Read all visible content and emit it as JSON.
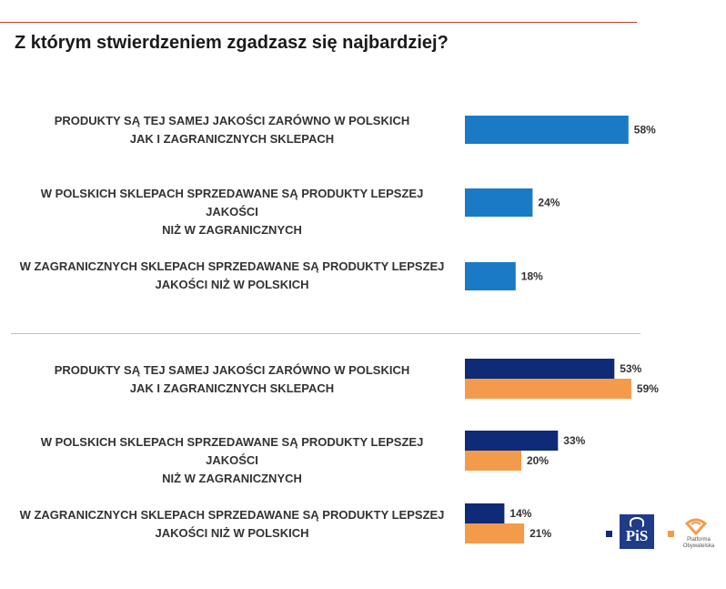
{
  "title": "Z którym stwierdzeniem zgadzasz się najbardziej?",
  "colors": {
    "all": "#1b7ac6",
    "pis": "#0f2a76",
    "po": "#f39b4b",
    "rule": "#c0392b"
  },
  "legend": {
    "pis_label": "PiS",
    "po_label_1": "Platforma",
    "po_label_2": "Obywatelska"
  },
  "chart_data": [
    {
      "type": "bar",
      "orientation": "horizontal",
      "categories": [
        "PRODUKTY SĄ TEJ SAMEJ JAKOŚCI ZARÓWNO W POLSKICH\nJAK I ZAGRANICZNYCH SKLEPACH",
        "W POLSKICH SKLEPACH SPRZEDAWANE SĄ PRODUKTY LEPSZEJ JAKOŚCI\nNIŻ W ZAGRANICZNYCH",
        "W ZAGRANICZNYCH SKLEPACH SPRZEDAWANE SĄ PRODUKTY LEPSZEJ\nJAKOŚCI NIŻ W POLSKICH"
      ],
      "series": [
        {
          "values": [
            58,
            24,
            18
          ],
          "labels": [
            "58%",
            "24%",
            "18%"
          ],
          "color": "#1b7ac6"
        }
      ]
    },
    {
      "type": "bar",
      "orientation": "horizontal",
      "categories": [
        "PRODUKTY SĄ TEJ SAMEJ JAKOŚCI ZARÓWNO W POLSKICH\nJAK I ZAGRANICZNYCH SKLEPACH",
        "W POLSKICH SKLEPACH SPRZEDAWANE SĄ PRODUKTY LEPSZEJ JAKOŚCI\nNIŻ W ZAGRANICZNYCH",
        "W ZAGRANICZNYCH SKLEPACH SPRZEDAWANE SĄ PRODUKTY LEPSZEJ\nJAKOŚCI NIŻ W POLSKICH"
      ],
      "series": [
        {
          "name": "PiS",
          "values": [
            53,
            33,
            14
          ],
          "labels": [
            "53%",
            "33%",
            "14%"
          ],
          "color": "#0f2a76"
        },
        {
          "name": "Platforma Obywatelska",
          "values": [
            59,
            20,
            21
          ],
          "labels": [
            "59%",
            "20%",
            "21%"
          ],
          "color": "#f39b4b"
        }
      ]
    }
  ]
}
